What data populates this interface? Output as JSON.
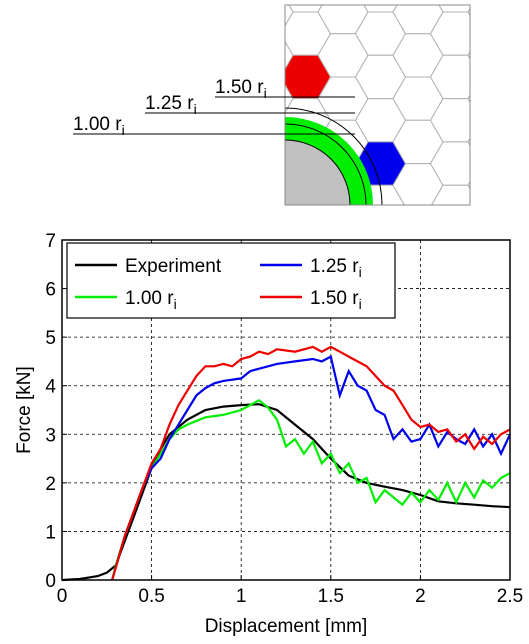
{
  "chart_data": {
    "type": "line",
    "xlabel": "Displacement [mm]",
    "ylabel": "Force [kN]",
    "xlim": [
      0,
      2.5
    ],
    "ylim": [
      0,
      7
    ],
    "xticks": [
      0,
      0.5,
      1,
      1.5,
      2,
      2.5
    ],
    "yticks": [
      0,
      1,
      2,
      3,
      4,
      5,
      6,
      7
    ],
    "grid": true,
    "series": [
      {
        "name": "Experiment",
        "color": "#000000",
        "x": [
          0,
          0.1,
          0.2,
          0.25,
          0.3,
          0.35,
          0.4,
          0.45,
          0.5,
          0.55,
          0.6,
          0.7,
          0.8,
          0.9,
          1.0,
          1.1,
          1.2,
          1.3,
          1.4,
          1.5,
          1.6,
          1.7,
          1.8,
          1.9,
          2.0,
          2.1,
          2.2,
          2.3,
          2.4,
          2.5
        ],
        "values": [
          0,
          0.02,
          0.08,
          0.15,
          0.3,
          0.8,
          1.3,
          1.8,
          2.3,
          2.7,
          3.0,
          3.3,
          3.5,
          3.57,
          3.6,
          3.62,
          3.5,
          3.2,
          2.9,
          2.5,
          2.15,
          2.0,
          1.92,
          1.85,
          1.75,
          1.62,
          1.58,
          1.55,
          1.52,
          1.5
        ]
      },
      {
        "name": "1.00 ri",
        "color": "#00ee00",
        "x": [
          0.28,
          0.3,
          0.35,
          0.4,
          0.45,
          0.5,
          0.55,
          0.6,
          0.65,
          0.7,
          0.8,
          0.9,
          1.0,
          1.05,
          1.1,
          1.15,
          1.2,
          1.25,
          1.3,
          1.35,
          1.4,
          1.45,
          1.5,
          1.55,
          1.6,
          1.65,
          1.7,
          1.75,
          1.8,
          1.85,
          1.9,
          1.95,
          2.0,
          2.05,
          2.1,
          2.15,
          2.2,
          2.25,
          2.3,
          2.35,
          2.4,
          2.45,
          2.5
        ],
        "values": [
          0,
          0.3,
          0.9,
          1.4,
          1.9,
          2.3,
          2.6,
          2.9,
          3.1,
          3.2,
          3.35,
          3.4,
          3.5,
          3.6,
          3.7,
          3.55,
          3.3,
          2.75,
          2.9,
          2.6,
          2.85,
          2.4,
          2.6,
          2.2,
          2.4,
          2.0,
          2.1,
          1.6,
          1.85,
          1.7,
          1.55,
          1.8,
          1.6,
          1.85,
          1.65,
          2.0,
          1.6,
          2.0,
          1.7,
          2.05,
          1.9,
          2.1,
          2.2
        ]
      },
      {
        "name": "1.25 ri",
        "color": "#0000ee",
        "x": [
          0.28,
          0.35,
          0.4,
          0.45,
          0.5,
          0.55,
          0.6,
          0.65,
          0.7,
          0.75,
          0.8,
          0.85,
          0.9,
          1.0,
          1.05,
          1.1,
          1.2,
          1.3,
          1.4,
          1.45,
          1.5,
          1.55,
          1.6,
          1.65,
          1.7,
          1.75,
          1.8,
          1.85,
          1.9,
          1.95,
          2.0,
          2.05,
          2.1,
          2.15,
          2.2,
          2.25,
          2.3,
          2.35,
          2.4,
          2.45,
          2.5
        ],
        "values": [
          0,
          0.9,
          1.4,
          1.9,
          2.3,
          2.5,
          2.9,
          3.2,
          3.5,
          3.8,
          3.95,
          4.05,
          4.1,
          4.15,
          4.3,
          4.35,
          4.45,
          4.5,
          4.55,
          4.5,
          4.6,
          3.8,
          4.3,
          4.0,
          3.9,
          3.5,
          3.4,
          2.9,
          3.1,
          2.85,
          2.9,
          3.2,
          2.75,
          3.05,
          2.9,
          2.8,
          3.1,
          2.75,
          3.0,
          2.6,
          3.0
        ]
      },
      {
        "name": "1.50 ri",
        "color": "#ee0000",
        "x": [
          0.28,
          0.35,
          0.4,
          0.45,
          0.5,
          0.55,
          0.6,
          0.65,
          0.7,
          0.75,
          0.8,
          0.85,
          0.9,
          0.95,
          1.0,
          1.05,
          1.1,
          1.15,
          1.2,
          1.3,
          1.4,
          1.45,
          1.5,
          1.55,
          1.6,
          1.7,
          1.8,
          1.85,
          1.9,
          1.95,
          2.0,
          2.05,
          2.1,
          2.15,
          2.2,
          2.25,
          2.3,
          2.35,
          2.4,
          2.45,
          2.5
        ],
        "values": [
          0,
          0.9,
          1.4,
          1.9,
          2.4,
          2.7,
          3.2,
          3.6,
          3.9,
          4.2,
          4.4,
          4.4,
          4.45,
          4.4,
          4.55,
          4.6,
          4.7,
          4.65,
          4.75,
          4.7,
          4.8,
          4.7,
          4.8,
          4.7,
          4.6,
          4.4,
          4.0,
          3.9,
          3.6,
          3.3,
          3.15,
          3.2,
          3.05,
          3.1,
          2.85,
          3.0,
          2.7,
          2.95,
          2.8,
          3.0,
          3.1
        ]
      }
    ]
  }
}
